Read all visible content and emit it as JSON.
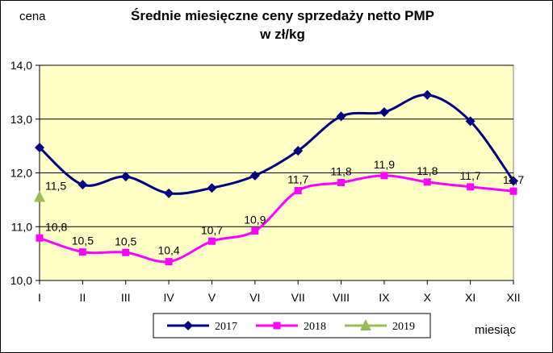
{
  "chart_data": {
    "type": "line",
    "title": "Średnie miesięczne ceny sprzedaży netto PMP",
    "subtitle": "w zł/kg",
    "ylabel": "cena",
    "xlabel": "miesiąc",
    "categories": [
      "I",
      "II",
      "III",
      "IV",
      "V",
      "VI",
      "VII",
      "VIII",
      "IX",
      "X",
      "XI",
      "XII"
    ],
    "ylim": [
      10.0,
      14.0
    ],
    "yticks": [
      "10,0",
      "11,0",
      "12,0",
      "13,0",
      "14,0"
    ],
    "grid": true,
    "plot_background": "#ffffc6",
    "legend_position": "bottom",
    "series": [
      {
        "name": "2017",
        "color": "#000080",
        "marker": "diamond",
        "values": [
          12.47,
          11.78,
          11.93,
          11.62,
          11.72,
          11.95,
          12.41,
          13.05,
          13.13,
          13.45,
          12.96,
          11.85
        ],
        "labels": []
      },
      {
        "name": "2018",
        "color": "#ff00ff",
        "marker": "square",
        "values": [
          10.79,
          10.53,
          10.52,
          10.35,
          10.73,
          10.92,
          11.67,
          11.82,
          11.95,
          11.83,
          11.74,
          11.66
        ],
        "labels": [
          "10,8",
          "10,5",
          "10,5",
          "10,4",
          "10,7",
          "10,9",
          "11,7",
          "11,8",
          "11,9",
          "11,8",
          "11,7",
          "11,7"
        ]
      },
      {
        "name": "2019",
        "color": "#9bbb59",
        "marker": "triangle",
        "values": [
          11.55,
          null,
          null,
          null,
          null,
          null,
          null,
          null,
          null,
          null,
          null,
          null
        ],
        "labels": [
          "11,5"
        ]
      }
    ]
  }
}
